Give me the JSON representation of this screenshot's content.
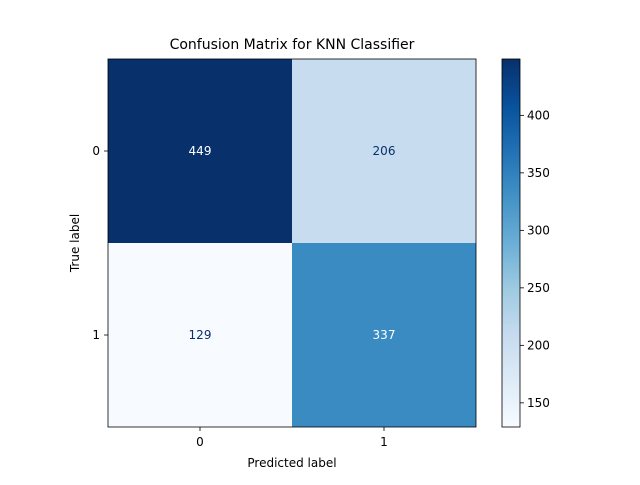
{
  "chart_data": {
    "type": "heatmap",
    "title": "Confusion Matrix for KNN Classifier",
    "xlabel": "Predicted label",
    "ylabel": "True label",
    "x_categories": [
      "0",
      "1"
    ],
    "y_categories": [
      "0",
      "1"
    ],
    "matrix": [
      [
        449,
        206
      ],
      [
        129,
        337
      ]
    ],
    "colormap": "Blues",
    "vmin": 129,
    "vmax": 449,
    "colorbar_ticks": [
      150,
      200,
      250,
      300,
      350,
      400
    ],
    "colorbar_tick_labels": [
      "150",
      "200",
      "250",
      "300",
      "350",
      "400"
    ],
    "grid": false
  }
}
